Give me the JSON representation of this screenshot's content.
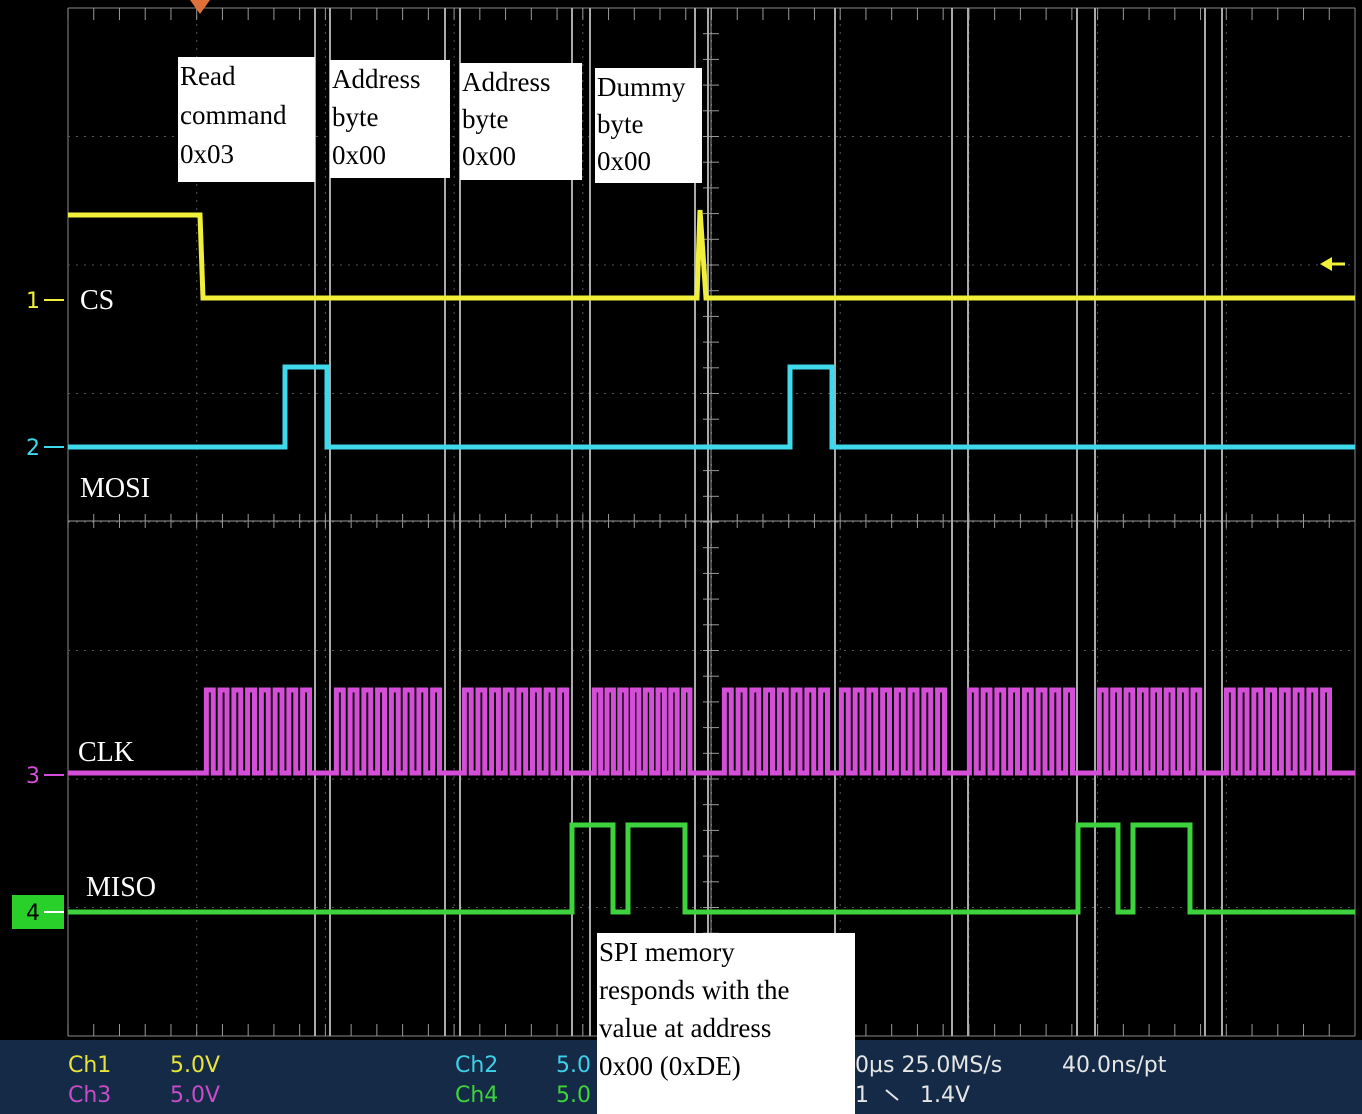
{
  "annotations": [
    {
      "lines": [
        "Read",
        "command",
        "0x03"
      ]
    },
    {
      "lines": [
        "Address",
        "byte",
        "0x00"
      ]
    },
    {
      "lines": [
        "Address",
        "byte",
        "0x00"
      ]
    },
    {
      "lines": [
        "Dummy",
        "byte",
        "0x00"
      ]
    },
    {
      "lines": [
        "SPI memory",
        "responds with the",
        "value at address",
        "0x00  (0xDE)"
      ]
    }
  ],
  "channels": [
    {
      "number": "1",
      "label": "CS"
    },
    {
      "number": "2",
      "label": "MOSI"
    },
    {
      "number": "3",
      "label": "CLK"
    },
    {
      "number": "4",
      "label": "MISO"
    }
  ],
  "status_bar": [
    "Ch1",
    "5.0V",
    "Ch3",
    "5.0V",
    "Ch2",
    "5.0",
    "Ch4",
    "5.0",
    "0µs 25.0MS/s",
    "40.0ns/pt",
    "1",
    "1.4V"
  ]
}
